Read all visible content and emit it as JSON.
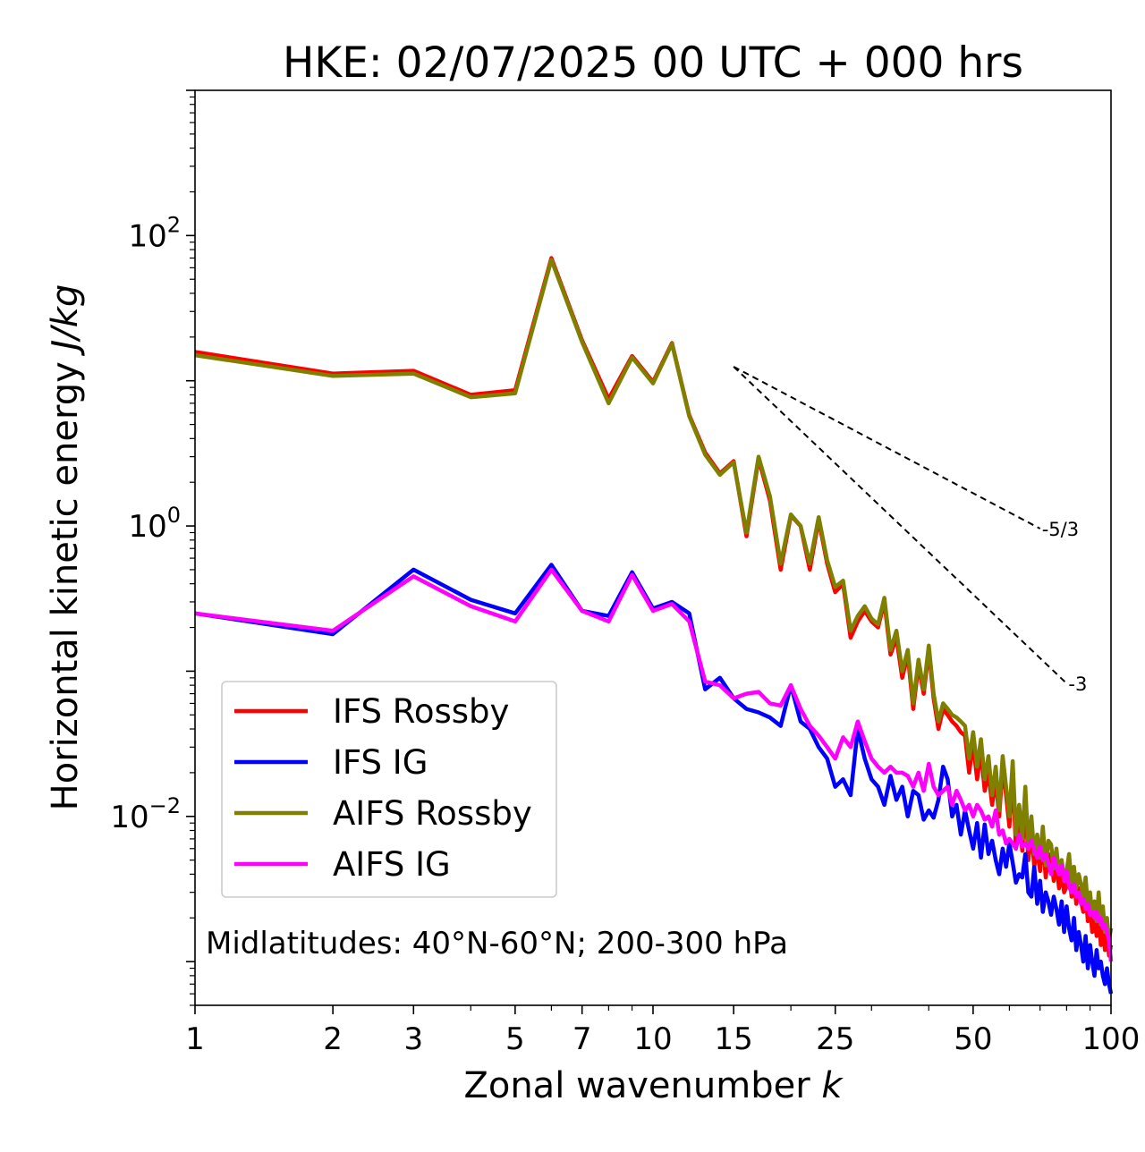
{
  "chart_data": {
    "type": "line",
    "title": "HKE: 02/07/2025 00 UTC + 000 hrs",
    "xlabel_main": "Zonal wavenumber ",
    "xlabel_var": "k",
    "ylabel_main": "Horizontal kinetic energy ",
    "ylabel_units": "J/kg",
    "x_scale": "log",
    "y_scale": "log",
    "xlim": [
      1,
      100
    ],
    "ylim": [
      0.0005,
      1000
    ],
    "x_ticks": [
      1,
      2,
      3,
      5,
      7,
      10,
      15,
      25,
      50,
      100
    ],
    "x_tick_labels": [
      "1",
      "2",
      "3",
      "5",
      "7",
      "10",
      "15",
      "25",
      "50",
      "100"
    ],
    "y_ticks": [
      {
        "value": 100,
        "base": "10",
        "exp": "2"
      },
      {
        "value": 1,
        "base": "10",
        "exp": "0"
      },
      {
        "value": 0.01,
        "base": "10",
        "exp": "−2"
      }
    ],
    "annotation": "Midlatitudes: 40°N-60°N; 200-300 hPa",
    "legend_position": "lower-left",
    "grid": false,
    "reference_lines": [
      {
        "label": "-5/3",
        "slope": -1.6667,
        "x_start": 15,
        "y_start": 12.5,
        "x_end": 70
      },
      {
        "label": "-3",
        "slope": -3,
        "x_start": 15,
        "y_start": 12.5,
        "x_end": 80
      }
    ],
    "series": [
      {
        "name": "IFS Rossby",
        "color": "#ff0000",
        "x": [
          1,
          2,
          3,
          4,
          5,
          6,
          7,
          8,
          9,
          10,
          11,
          12,
          13,
          14,
          15,
          16,
          17,
          18,
          19,
          20,
          21,
          22,
          23,
          24,
          25,
          26,
          27,
          28,
          29,
          30,
          31,
          32,
          33,
          34,
          35,
          36,
          37,
          38,
          39,
          40,
          41,
          42,
          43,
          44,
          45,
          46,
          47,
          48,
          49,
          50,
          51,
          52,
          53,
          54,
          55,
          56,
          57,
          58,
          59,
          60,
          61,
          62,
          63,
          64,
          65,
          66,
          67,
          68,
          69,
          70,
          71,
          72,
          73,
          74,
          75,
          76,
          77,
          78,
          79,
          80,
          81,
          82,
          83,
          84,
          85,
          86,
          87,
          88,
          89,
          90,
          91,
          92,
          93,
          94,
          95,
          96,
          97,
          98,
          99,
          100
        ],
        "y": [
          15.8,
          11.2,
          11.7,
          8.0,
          8.6,
          70.0,
          19.0,
          7.5,
          14.8,
          9.8,
          18.2,
          5.8,
          3.2,
          2.3,
          2.8,
          0.85,
          2.9,
          1.5,
          0.5,
          1.18,
          1.0,
          0.5,
          1.1,
          0.55,
          0.35,
          0.4,
          0.17,
          0.22,
          0.26,
          0.22,
          0.2,
          0.3,
          0.13,
          0.17,
          0.09,
          0.13,
          0.055,
          0.11,
          0.07,
          0.14,
          0.065,
          0.04,
          0.055,
          0.05,
          0.045,
          0.042,
          0.038,
          0.036,
          0.02,
          0.032,
          0.018,
          0.028,
          0.015,
          0.02,
          0.012,
          0.018,
          0.01,
          0.022,
          0.014,
          0.0085,
          0.02,
          0.006,
          0.0095,
          0.0058,
          0.013,
          0.005,
          0.008,
          0.0045,
          0.006,
          0.0042,
          0.007,
          0.0038,
          0.0055,
          0.0052,
          0.0036,
          0.0048,
          0.0032,
          0.004,
          0.003,
          0.0033,
          0.0044,
          0.0028,
          0.0036,
          0.0025,
          0.0032,
          0.0026,
          0.0022,
          0.003,
          0.0019,
          0.0024,
          0.0016,
          0.002,
          0.0015,
          0.0023,
          0.0013,
          0.0018,
          0.0012,
          0.0016,
          0.0011,
          0.0013
        ]
      },
      {
        "name": "IFS IG",
        "color": "#0000ff",
        "x": [
          1,
          2,
          3,
          4,
          5,
          6,
          7,
          8,
          9,
          10,
          11,
          12,
          13,
          14,
          15,
          16,
          17,
          18,
          19,
          20,
          21,
          22,
          23,
          24,
          25,
          26,
          27,
          28,
          29,
          30,
          31,
          32,
          33,
          34,
          35,
          36,
          37,
          38,
          39,
          40,
          41,
          42,
          43,
          44,
          45,
          46,
          47,
          48,
          49,
          50,
          51,
          52,
          53,
          54,
          55,
          56,
          57,
          58,
          59,
          60,
          61,
          62,
          63,
          64,
          65,
          66,
          67,
          68,
          69,
          70,
          71,
          72,
          73,
          74,
          75,
          76,
          77,
          78,
          79,
          80,
          81,
          82,
          83,
          84,
          85,
          86,
          87,
          88,
          89,
          90,
          91,
          92,
          93,
          94,
          95,
          96,
          97,
          98,
          99,
          100
        ],
        "y": [
          0.25,
          0.18,
          0.5,
          0.31,
          0.25,
          0.54,
          0.26,
          0.24,
          0.48,
          0.27,
          0.3,
          0.25,
          0.075,
          0.09,
          0.065,
          0.055,
          0.052,
          0.048,
          0.042,
          0.08,
          0.045,
          0.04,
          0.03,
          0.025,
          0.016,
          0.018,
          0.014,
          0.04,
          0.025,
          0.018,
          0.016,
          0.012,
          0.019,
          0.013,
          0.016,
          0.01,
          0.015,
          0.014,
          0.0095,
          0.011,
          0.0098,
          0.013,
          0.022,
          0.018,
          0.01,
          0.012,
          0.0075,
          0.011,
          0.008,
          0.006,
          0.009,
          0.0052,
          0.0088,
          0.0055,
          0.0068,
          0.005,
          0.004,
          0.006,
          0.0045,
          0.0065,
          0.0048,
          0.0035,
          0.004,
          0.0038,
          0.0055,
          0.003,
          0.0028,
          0.0045,
          0.0025,
          0.0036,
          0.0022,
          0.003,
          0.0026,
          0.0021,
          0.0028,
          0.0023,
          0.0018,
          0.0026,
          0.0016,
          0.0024,
          0.0017,
          0.0014,
          0.002,
          0.0012,
          0.0016,
          0.0013,
          0.001,
          0.0015,
          0.0009,
          0.0013,
          0.001,
          0.0008,
          0.0012,
          0.0009,
          0.001,
          0.0008,
          0.0007,
          0.0009,
          0.0007,
          0.0006
        ]
      },
      {
        "name": "AIFS Rossby",
        "color": "#808000",
        "x": [
          1,
          2,
          3,
          4,
          5,
          6,
          7,
          8,
          9,
          10,
          11,
          12,
          13,
          14,
          15,
          16,
          17,
          18,
          19,
          20,
          21,
          22,
          23,
          24,
          25,
          26,
          27,
          28,
          29,
          30,
          31,
          32,
          33,
          34,
          35,
          36,
          37,
          38,
          39,
          40,
          41,
          42,
          43,
          44,
          45,
          46,
          47,
          48,
          49,
          50,
          51,
          52,
          53,
          54,
          55,
          56,
          57,
          58,
          59,
          60,
          61,
          62,
          63,
          64,
          65,
          66,
          67,
          68,
          69,
          70,
          71,
          72,
          73,
          74,
          75,
          76,
          77,
          78,
          79,
          80,
          81,
          82,
          83,
          84,
          85,
          86,
          87,
          88,
          89,
          90,
          91,
          92,
          93,
          94,
          95,
          96,
          97,
          98,
          99,
          100
        ],
        "y": [
          15.0,
          10.8,
          11.2,
          7.7,
          8.2,
          68.0,
          18.5,
          7.0,
          14.5,
          9.6,
          18.0,
          5.7,
          3.1,
          2.25,
          2.75,
          0.9,
          3.0,
          1.6,
          0.55,
          1.2,
          1.0,
          0.55,
          1.15,
          0.58,
          0.38,
          0.42,
          0.19,
          0.24,
          0.28,
          0.23,
          0.21,
          0.32,
          0.14,
          0.19,
          0.1,
          0.14,
          0.06,
          0.12,
          0.075,
          0.15,
          0.07,
          0.045,
          0.06,
          0.055,
          0.05,
          0.048,
          0.045,
          0.042,
          0.025,
          0.038,
          0.022,
          0.034,
          0.018,
          0.026,
          0.014,
          0.022,
          0.011,
          0.026,
          0.016,
          0.01,
          0.024,
          0.0075,
          0.012,
          0.007,
          0.016,
          0.006,
          0.01,
          0.0055,
          0.0075,
          0.0052,
          0.0085,
          0.0046,
          0.0068,
          0.0064,
          0.0044,
          0.006,
          0.004,
          0.005,
          0.0038,
          0.0042,
          0.0055,
          0.0035,
          0.0045,
          0.0032,
          0.004,
          0.0034,
          0.0028,
          0.0038,
          0.0024,
          0.003,
          0.0021,
          0.0026,
          0.0019,
          0.003,
          0.0018,
          0.0024,
          0.0016,
          0.002,
          0.0014,
          0.0017
        ]
      },
      {
        "name": "AIFS IG",
        "color": "#ff00ff",
        "x": [
          1,
          2,
          3,
          4,
          5,
          6,
          7,
          8,
          9,
          10,
          11,
          12,
          13,
          14,
          15,
          16,
          17,
          18,
          19,
          20,
          21,
          22,
          23,
          24,
          25,
          26,
          27,
          28,
          29,
          30,
          31,
          32,
          33,
          34,
          35,
          36,
          37,
          38,
          39,
          40,
          41,
          42,
          43,
          44,
          45,
          46,
          47,
          48,
          49,
          50,
          51,
          52,
          53,
          54,
          55,
          56,
          57,
          58,
          59,
          60,
          61,
          62,
          63,
          64,
          65,
          66,
          67,
          68,
          69,
          70,
          71,
          72,
          73,
          74,
          75,
          76,
          77,
          78,
          79,
          80,
          81,
          82,
          83,
          84,
          85,
          86,
          87,
          88,
          89,
          90,
          91,
          92,
          93,
          94,
          95,
          96,
          97,
          98,
          99,
          100
        ],
        "y": [
          0.25,
          0.19,
          0.45,
          0.28,
          0.22,
          0.5,
          0.26,
          0.22,
          0.46,
          0.26,
          0.29,
          0.22,
          0.085,
          0.08,
          0.065,
          0.07,
          0.072,
          0.06,
          0.058,
          0.08,
          0.055,
          0.042,
          0.036,
          0.03,
          0.025,
          0.035,
          0.03,
          0.045,
          0.033,
          0.025,
          0.022,
          0.02,
          0.022,
          0.02,
          0.02,
          0.019,
          0.016,
          0.02,
          0.015,
          0.023,
          0.016,
          0.014,
          0.015,
          0.016,
          0.012,
          0.015,
          0.013,
          0.011,
          0.012,
          0.01,
          0.012,
          0.011,
          0.0095,
          0.01,
          0.0085,
          0.011,
          0.0075,
          0.008,
          0.0065,
          0.007,
          0.0065,
          0.006,
          0.0075,
          0.0062,
          0.0065,
          0.006,
          0.0068,
          0.0058,
          0.0052,
          0.0062,
          0.005,
          0.0055,
          0.0048,
          0.004,
          0.0052,
          0.0045,
          0.004,
          0.0046,
          0.0036,
          0.0042,
          0.0033,
          0.003,
          0.0034,
          0.0028,
          0.003,
          0.0025,
          0.0027,
          0.0023,
          0.0025,
          0.0021,
          0.0022,
          0.002,
          0.0022,
          0.0019,
          0.002,
          0.0017,
          0.0018,
          0.0016,
          0.0014,
          0.001
        ]
      }
    ]
  }
}
